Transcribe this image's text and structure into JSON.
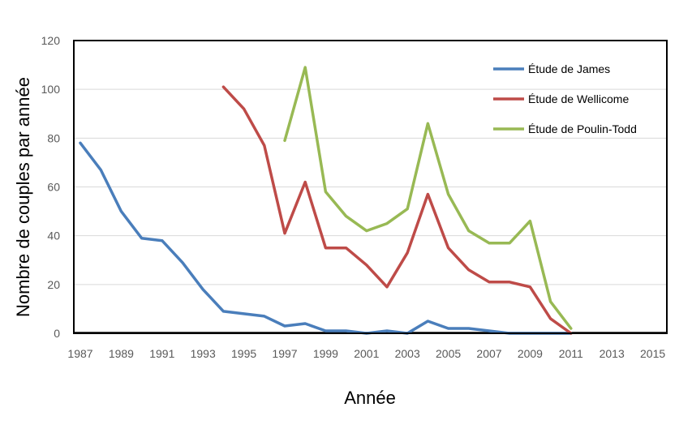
{
  "chart_data": {
    "type": "line",
    "xlabel": "Année",
    "ylabel": "Nombre de couples par année",
    "xlim": [
      1987,
      2016
    ],
    "ylim": [
      0,
      120
    ],
    "x_ticks": [
      1987,
      1989,
      1991,
      1993,
      1995,
      1997,
      1999,
      2001,
      2003,
      2005,
      2007,
      2009,
      2011,
      2013,
      2015
    ],
    "y_ticks": [
      0,
      20,
      40,
      60,
      80,
      100,
      120
    ],
    "grid": "horizontal",
    "legend_position": "top-right",
    "series": [
      {
        "name": "Étude de James",
        "color": "#4a7ebb",
        "x": [
          1987,
          1988,
          1989,
          1990,
          1991,
          1992,
          1993,
          1994,
          1995,
          1996,
          1997,
          1998,
          1999,
          2000,
          2001,
          2002,
          2003,
          2004,
          2005,
          2006,
          2007,
          2008,
          2009,
          2010,
          2011
        ],
        "values": [
          78,
          67,
          50,
          39,
          38,
          29,
          18,
          9,
          8,
          7,
          3,
          4,
          1,
          1,
          0,
          1,
          0,
          5,
          2,
          2,
          1,
          0,
          0,
          0,
          0
        ]
      },
      {
        "name": "Étude de Wellicome",
        "color": "#be4b48",
        "x": [
          1994,
          1995,
          1996,
          1997,
          1998,
          1999,
          2000,
          2001,
          2002,
          2003,
          2004,
          2005,
          2006,
          2007,
          2008,
          2009,
          2010,
          2011
        ],
        "values": [
          101,
          92,
          77,
          41,
          62,
          35,
          35,
          28,
          19,
          33,
          57,
          35,
          26,
          21,
          21,
          19,
          6,
          0
        ]
      },
      {
        "name": "Étude de Poulin-Todd",
        "color": "#98b954",
        "x": [
          1997,
          1998,
          1999,
          2000,
          2001,
          2002,
          2003,
          2004,
          2005,
          2006,
          2007,
          2008,
          2009,
          2010,
          2011
        ],
        "values": [
          79,
          109,
          58,
          48,
          42,
          45,
          51,
          86,
          57,
          42,
          37,
          37,
          46,
          13,
          2
        ]
      }
    ]
  }
}
